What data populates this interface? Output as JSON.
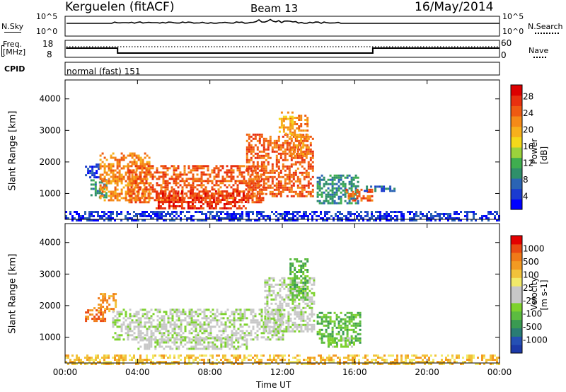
{
  "header": {
    "station": "Kerguelen (fitACF)",
    "beam": "Beam 13",
    "date": "16/May/2014"
  },
  "nsky_panel": {
    "left_label": "N.Sky",
    "right_label": "N.Search",
    "y_ticks": [
      "10^5",
      "10^0"
    ],
    "right_ticks": [
      "10^5",
      "10^0"
    ]
  },
  "freq_panel": {
    "left_label_1": "Freq.",
    "left_label_2": "[MHz]",
    "right_label": "Nave",
    "y_ticks": [
      "18",
      "8"
    ],
    "right_ticks": [
      "60",
      "0"
    ]
  },
  "cpid": {
    "label": "CPID",
    "value": "normal (fast) 151"
  },
  "chart_data": [
    {
      "type": "heatmap",
      "name": "power",
      "ylabel": "Slant Range [km]",
      "ylim": [
        180,
        4600
      ],
      "y_ticks": [
        1000,
        2000,
        3000,
        4000
      ],
      "x_ticks": [
        0,
        4,
        8,
        12,
        16,
        20,
        24
      ],
      "colorbar": {
        "label": "Power [dB]",
        "ticks": [
          "28",
          "24",
          "20",
          "16",
          "12",
          "8",
          "4"
        ],
        "colors": [
          "#0000ff",
          "#1a3bd0",
          "#2b64b4",
          "#2f8f6a",
          "#3fae4f",
          "#9bd23c",
          "#f4d81a",
          "#f7b01c",
          "#f58a18",
          "#ef5a12",
          "#e8300f",
          "#dd0000"
        ]
      },
      "regions": [
        {
          "x": [
            1.1,
            1.9
          ],
          "y": [
            1500,
            1950
          ],
          "level": 1
        },
        {
          "x": [
            1.4,
            2.3
          ],
          "y": [
            900,
            1450
          ],
          "level": 3
        },
        {
          "x": [
            1.9,
            4.6
          ],
          "y": [
            800,
            2300
          ],
          "level": 8
        },
        {
          "x": [
            3.5,
            11.0
          ],
          "y": [
            700,
            1900
          ],
          "level": 9
        },
        {
          "x": [
            5.0,
            10.0
          ],
          "y": [
            550,
            1100
          ],
          "level": 10
        },
        {
          "x": [
            10.0,
            13.7
          ],
          "y": [
            900,
            2900
          ],
          "level": 9
        },
        {
          "x": [
            12.4,
            13.4
          ],
          "y": [
            2200,
            3500
          ],
          "level": 8
        },
        {
          "x": [
            11.8,
            12.6
          ],
          "y": [
            2900,
            3600
          ],
          "level": 7
        },
        {
          "x": [
            13.9,
            16.2
          ],
          "y": [
            700,
            1600
          ],
          "level": 3
        },
        {
          "x": [
            15.5,
            17.0
          ],
          "y": [
            800,
            1150
          ],
          "level": 9
        },
        {
          "x": [
            16.5,
            18.2
          ],
          "y": [
            1050,
            1250
          ],
          "level": 2
        },
        {
          "x": [
            0.0,
            24.0
          ],
          "y": [
            180,
            450
          ],
          "level": 1
        }
      ]
    },
    {
      "type": "heatmap",
      "name": "velocity",
      "ylabel": "Slant Range [km]",
      "xlabel": "Time UT",
      "ylim": [
        180,
        4600
      ],
      "y_ticks": [
        1000,
        2000,
        3000,
        4000
      ],
      "x_ticks": [
        0,
        4,
        8,
        12,
        16,
        20,
        24
      ],
      "x_tick_labels": [
        "00:00",
        "04:00",
        "08:00",
        "12:00",
        "16:00",
        "20:00",
        "00:00"
      ],
      "colorbar": {
        "label": "Velocity [m s-1]",
        "ticks": [
          "1000",
          "500",
          "100",
          "25",
          "-25",
          "-100",
          "-500",
          "-1000"
        ],
        "colors": [
          "#1c3aa8",
          "#2550b4",
          "#2a7d74",
          "#3a9a52",
          "#5cbc40",
          "#7ed22e",
          "#c8c8c8",
          "#c8c8c8",
          "#f2ea6a",
          "#f2c23a",
          "#f39a22",
          "#f07a18",
          "#ea4a12",
          "#e40000"
        ]
      },
      "regions": [
        {
          "x": [
            1.1,
            2.2
          ],
          "y": [
            1500,
            1950
          ],
          "level": 11
        },
        {
          "x": [
            1.8,
            2.8
          ],
          "y": [
            1800,
            2400
          ],
          "level": 10
        },
        {
          "x": [
            2.6,
            12.0
          ],
          "y": [
            900,
            1900
          ],
          "level": 6
        },
        {
          "x": [
            4.0,
            10.0
          ],
          "y": [
            600,
            1000
          ],
          "level": 6
        },
        {
          "x": [
            11.0,
            13.8
          ],
          "y": [
            1200,
            2900
          ],
          "level": 6
        },
        {
          "x": [
            12.4,
            13.4
          ],
          "y": [
            2200,
            3500
          ],
          "level": 4
        },
        {
          "x": [
            13.9,
            16.3
          ],
          "y": [
            800,
            1800
          ],
          "level": 4
        },
        {
          "x": [
            14.5,
            16.0
          ],
          "y": [
            700,
            1000
          ],
          "level": 5
        },
        {
          "x": [
            0.0,
            24.0
          ],
          "y": [
            180,
            450
          ],
          "level": 9
        }
      ]
    }
  ]
}
